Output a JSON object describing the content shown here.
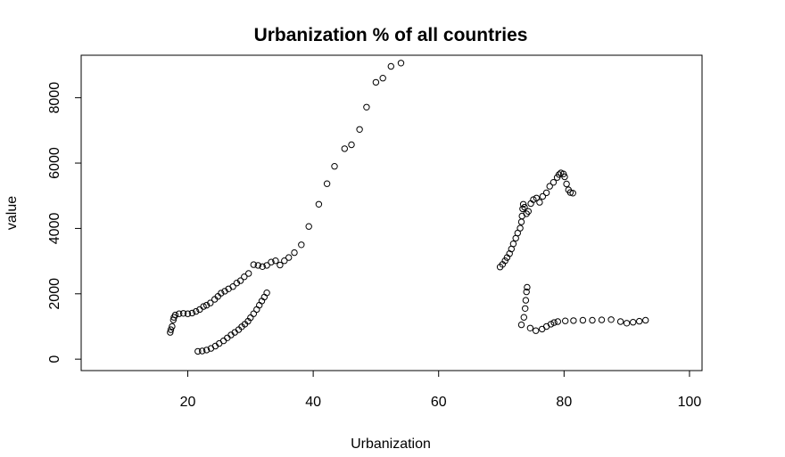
{
  "chart_data": {
    "type": "scatter",
    "title": "Urbanization % of all countries",
    "xlabel": "Urbanization",
    "ylabel": "value",
    "xlim": [
      3,
      102
    ],
    "ylim": [
      -350,
      9300
    ],
    "xticks": [
      20,
      40,
      60,
      80,
      100
    ],
    "yticks": [
      0,
      2000,
      4000,
      6000,
      8000
    ],
    "grid": false,
    "legend": "none",
    "marker": "open-circle",
    "series": [
      {
        "points": [
          [
            17.2,
            820
          ],
          [
            17.3,
            900
          ],
          [
            17.5,
            1000
          ],
          [
            17.7,
            1200
          ],
          [
            17.8,
            1280
          ],
          [
            18.0,
            1350
          ],
          [
            18.6,
            1390
          ],
          [
            19.3,
            1400
          ],
          [
            20.0,
            1390
          ],
          [
            20.7,
            1410
          ],
          [
            21.3,
            1460
          ],
          [
            21.9,
            1520
          ],
          [
            22.5,
            1610
          ],
          [
            23.0,
            1650
          ],
          [
            23.6,
            1720
          ],
          [
            24.3,
            1830
          ],
          [
            24.8,
            1920
          ],
          [
            25.3,
            2020
          ],
          [
            25.9,
            2080
          ],
          [
            26.5,
            2150
          ],
          [
            27.2,
            2220
          ],
          [
            27.8,
            2330
          ],
          [
            28.4,
            2400
          ],
          [
            29.0,
            2520
          ],
          [
            29.7,
            2620
          ],
          [
            30.5,
            2890
          ],
          [
            31.2,
            2870
          ],
          [
            31.9,
            2830
          ],
          [
            32.6,
            2870
          ],
          [
            33.3,
            2970
          ],
          [
            34.0,
            3010
          ],
          [
            34.7,
            2880
          ],
          [
            35.4,
            3010
          ],
          [
            36.1,
            3110
          ],
          [
            37.0,
            3260
          ],
          [
            38.1,
            3500
          ],
          [
            39.3,
            4060
          ],
          [
            40.9,
            4740
          ],
          [
            42.2,
            5370
          ],
          [
            43.4,
            5900
          ],
          [
            45.0,
            6440
          ],
          [
            46.1,
            6560
          ],
          [
            47.4,
            7030
          ],
          [
            48.5,
            7710
          ],
          [
            50.0,
            8470
          ],
          [
            51.1,
            8600
          ],
          [
            52.4,
            8960
          ],
          [
            54.0,
            9060
          ]
        ]
      },
      {
        "points": [
          [
            69.8,
            2820
          ],
          [
            70.2,
            2900
          ],
          [
            70.6,
            3010
          ],
          [
            70.9,
            3110
          ],
          [
            71.3,
            3230
          ],
          [
            71.6,
            3370
          ],
          [
            71.9,
            3530
          ],
          [
            72.3,
            3700
          ],
          [
            72.6,
            3860
          ],
          [
            73.0,
            4010
          ],
          [
            73.2,
            4200
          ],
          [
            73.3,
            4380
          ],
          [
            73.4,
            4600
          ],
          [
            73.5,
            4740
          ],
          [
            73.7,
            4650
          ],
          [
            74.0,
            4450
          ],
          [
            74.3,
            4520
          ],
          [
            74.7,
            4760
          ],
          [
            75.1,
            4880
          ],
          [
            75.6,
            4930
          ],
          [
            76.1,
            4800
          ],
          [
            76.6,
            4980
          ],
          [
            77.2,
            5090
          ],
          [
            77.7,
            5290
          ],
          [
            78.3,
            5410
          ],
          [
            78.9,
            5560
          ],
          [
            79.2,
            5650
          ],
          [
            79.5,
            5700
          ],
          [
            79.9,
            5670
          ],
          [
            80.1,
            5580
          ],
          [
            80.4,
            5360
          ],
          [
            80.7,
            5180
          ],
          [
            81.0,
            5100
          ],
          [
            81.4,
            5080
          ]
        ]
      },
      {
        "points": [
          [
            21.6,
            240
          ],
          [
            22.3,
            250
          ],
          [
            23.0,
            280
          ],
          [
            23.7,
            330
          ],
          [
            24.4,
            400
          ],
          [
            25.0,
            480
          ],
          [
            25.7,
            560
          ],
          [
            26.3,
            650
          ],
          [
            26.9,
            740
          ],
          [
            27.5,
            820
          ],
          [
            28.1,
            900
          ],
          [
            28.6,
            990
          ],
          [
            29.1,
            1070
          ],
          [
            29.6,
            1160
          ],
          [
            30.0,
            1270
          ],
          [
            30.5,
            1390
          ],
          [
            31.0,
            1520
          ],
          [
            31.4,
            1650
          ],
          [
            31.8,
            1780
          ],
          [
            32.2,
            1900
          ],
          [
            32.6,
            2030
          ]
        ]
      },
      {
        "points": [
          [
            73.2,
            1050
          ],
          [
            73.6,
            1280
          ],
          [
            73.8,
            1550
          ],
          [
            73.9,
            1800
          ],
          [
            74.0,
            2060
          ],
          [
            74.1,
            2200
          ],
          [
            74.6,
            950
          ],
          [
            75.5,
            870
          ],
          [
            76.5,
            920
          ],
          [
            77.2,
            1000
          ],
          [
            77.9,
            1070
          ],
          [
            78.4,
            1120
          ],
          [
            79.0,
            1150
          ],
          [
            80.2,
            1170
          ],
          [
            81.5,
            1180
          ],
          [
            83.0,
            1190
          ],
          [
            84.5,
            1190
          ],
          [
            86.0,
            1200
          ],
          [
            87.5,
            1210
          ],
          [
            89.0,
            1150
          ],
          [
            90.0,
            1100
          ],
          [
            91.0,
            1130
          ],
          [
            92.0,
            1160
          ],
          [
            93.0,
            1190
          ]
        ]
      }
    ]
  }
}
